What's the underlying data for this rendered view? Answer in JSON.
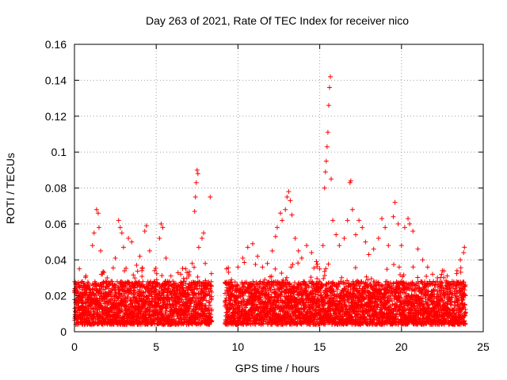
{
  "chart_data": {
    "type": "scatter",
    "title": "Day 263 of 2021, Rate Of TEC Index for receiver nico",
    "xlabel": "GPS time / hours",
    "ylabel": "ROTI / TECUs",
    "xlim": [
      0,
      25
    ],
    "ylim": [
      0,
      0.16
    ],
    "xticks": [
      0,
      5,
      10,
      15,
      20,
      25
    ],
    "yticks": [
      0,
      0.02,
      0.04,
      0.06,
      0.08,
      0.1,
      0.12,
      0.14,
      0.16
    ],
    "grid": true,
    "marker": "+",
    "color": "#ff0000",
    "data_gap": [
      8.4,
      9.2
    ],
    "series": [
      {
        "points": [
          [
            0.1,
            0.021
          ],
          [
            0.2,
            0.026
          ],
          [
            0.3,
            0.035
          ],
          [
            0.5,
            0.028
          ],
          [
            0.7,
            0.031
          ],
          [
            0.9,
            0.024
          ],
          [
            1.1,
            0.048
          ],
          [
            1.2,
            0.055
          ],
          [
            1.35,
            0.068
          ],
          [
            1.45,
            0.066
          ],
          [
            1.5,
            0.058
          ],
          [
            1.6,
            0.045
          ],
          [
            1.8,
            0.033
          ],
          [
            2.0,
            0.03
          ],
          [
            2.3,
            0.028
          ],
          [
            2.5,
            0.041
          ],
          [
            2.7,
            0.062
          ],
          [
            2.8,
            0.058
          ],
          [
            2.9,
            0.055
          ],
          [
            3.0,
            0.047
          ],
          [
            3.3,
            0.052
          ],
          [
            3.5,
            0.05
          ],
          [
            3.8,
            0.037
          ],
          [
            4.0,
            0.042
          ],
          [
            4.3,
            0.056
          ],
          [
            4.4,
            0.059
          ],
          [
            4.6,
            0.045
          ],
          [
            4.9,
            0.034
          ],
          [
            5.2,
            0.052
          ],
          [
            5.3,
            0.06
          ],
          [
            5.4,
            0.058
          ],
          [
            5.6,
            0.041
          ],
          [
            5.9,
            0.031
          ],
          [
            6.2,
            0.027
          ],
          [
            6.5,
            0.032
          ],
          [
            6.8,
            0.035
          ],
          [
            7.0,
            0.031
          ],
          [
            7.2,
            0.038
          ],
          [
            7.35,
            0.067
          ],
          [
            7.4,
            0.075
          ],
          [
            7.45,
            0.083
          ],
          [
            7.5,
            0.09
          ],
          [
            7.55,
            0.088
          ],
          [
            7.6,
            0.047
          ],
          [
            7.8,
            0.052
          ],
          [
            7.9,
            0.055
          ],
          [
            8.0,
            0.038
          ],
          [
            8.3,
            0.075
          ],
          [
            9.3,
            0.035
          ],
          [
            9.6,
            0.029
          ],
          [
            10.0,
            0.036
          ],
          [
            10.3,
            0.041
          ],
          [
            10.6,
            0.047
          ],
          [
            10.9,
            0.049
          ],
          [
            11.2,
            0.042
          ],
          [
            11.5,
            0.036
          ],
          [
            11.8,
            0.038
          ],
          [
            12.1,
            0.045
          ],
          [
            12.3,
            0.053
          ],
          [
            12.4,
            0.058
          ],
          [
            12.6,
            0.066
          ],
          [
            12.7,
            0.062
          ],
          [
            12.9,
            0.068
          ],
          [
            13.0,
            0.075
          ],
          [
            13.1,
            0.078
          ],
          [
            13.2,
            0.073
          ],
          [
            13.3,
            0.065
          ],
          [
            13.5,
            0.052
          ],
          [
            13.7,
            0.045
          ],
          [
            13.9,
            0.041
          ],
          [
            14.2,
            0.048
          ],
          [
            14.5,
            0.044
          ],
          [
            14.8,
            0.039
          ],
          [
            15.0,
            0.035
          ],
          [
            15.2,
            0.048
          ],
          [
            15.3,
            0.08
          ],
          [
            15.35,
            0.089
          ],
          [
            15.4,
            0.095
          ],
          [
            15.45,
            0.103
          ],
          [
            15.5,
            0.111
          ],
          [
            15.55,
            0.126
          ],
          [
            15.6,
            0.136
          ],
          [
            15.65,
            0.142
          ],
          [
            15.7,
            0.085
          ],
          [
            15.8,
            0.062
          ],
          [
            16.0,
            0.054
          ],
          [
            16.2,
            0.048
          ],
          [
            16.5,
            0.052
          ],
          [
            16.7,
            0.062
          ],
          [
            16.85,
            0.083
          ],
          [
            16.9,
            0.084
          ],
          [
            17.0,
            0.068
          ],
          [
            17.2,
            0.054
          ],
          [
            17.4,
            0.062
          ],
          [
            17.6,
            0.058
          ],
          [
            17.8,
            0.05
          ],
          [
            18.0,
            0.043
          ],
          [
            18.3,
            0.046
          ],
          [
            18.6,
            0.052
          ],
          [
            18.8,
            0.063
          ],
          [
            19.0,
            0.058
          ],
          [
            19.2,
            0.048
          ],
          [
            19.5,
            0.064
          ],
          [
            19.6,
            0.072
          ],
          [
            19.8,
            0.06
          ],
          [
            20.0,
            0.048
          ],
          [
            20.2,
            0.058
          ],
          [
            20.4,
            0.063
          ],
          [
            20.5,
            0.06
          ],
          [
            20.7,
            0.056
          ],
          [
            21.0,
            0.046
          ],
          [
            21.3,
            0.04
          ],
          [
            21.6,
            0.036
          ],
          [
            21.9,
            0.032
          ],
          [
            22.2,
            0.03
          ],
          [
            22.5,
            0.034
          ],
          [
            22.8,
            0.031
          ],
          [
            23.1,
            0.028
          ],
          [
            23.4,
            0.034
          ],
          [
            23.6,
            0.04
          ],
          [
            23.8,
            0.044
          ],
          [
            23.85,
            0.047
          ]
        ]
      }
    ]
  }
}
